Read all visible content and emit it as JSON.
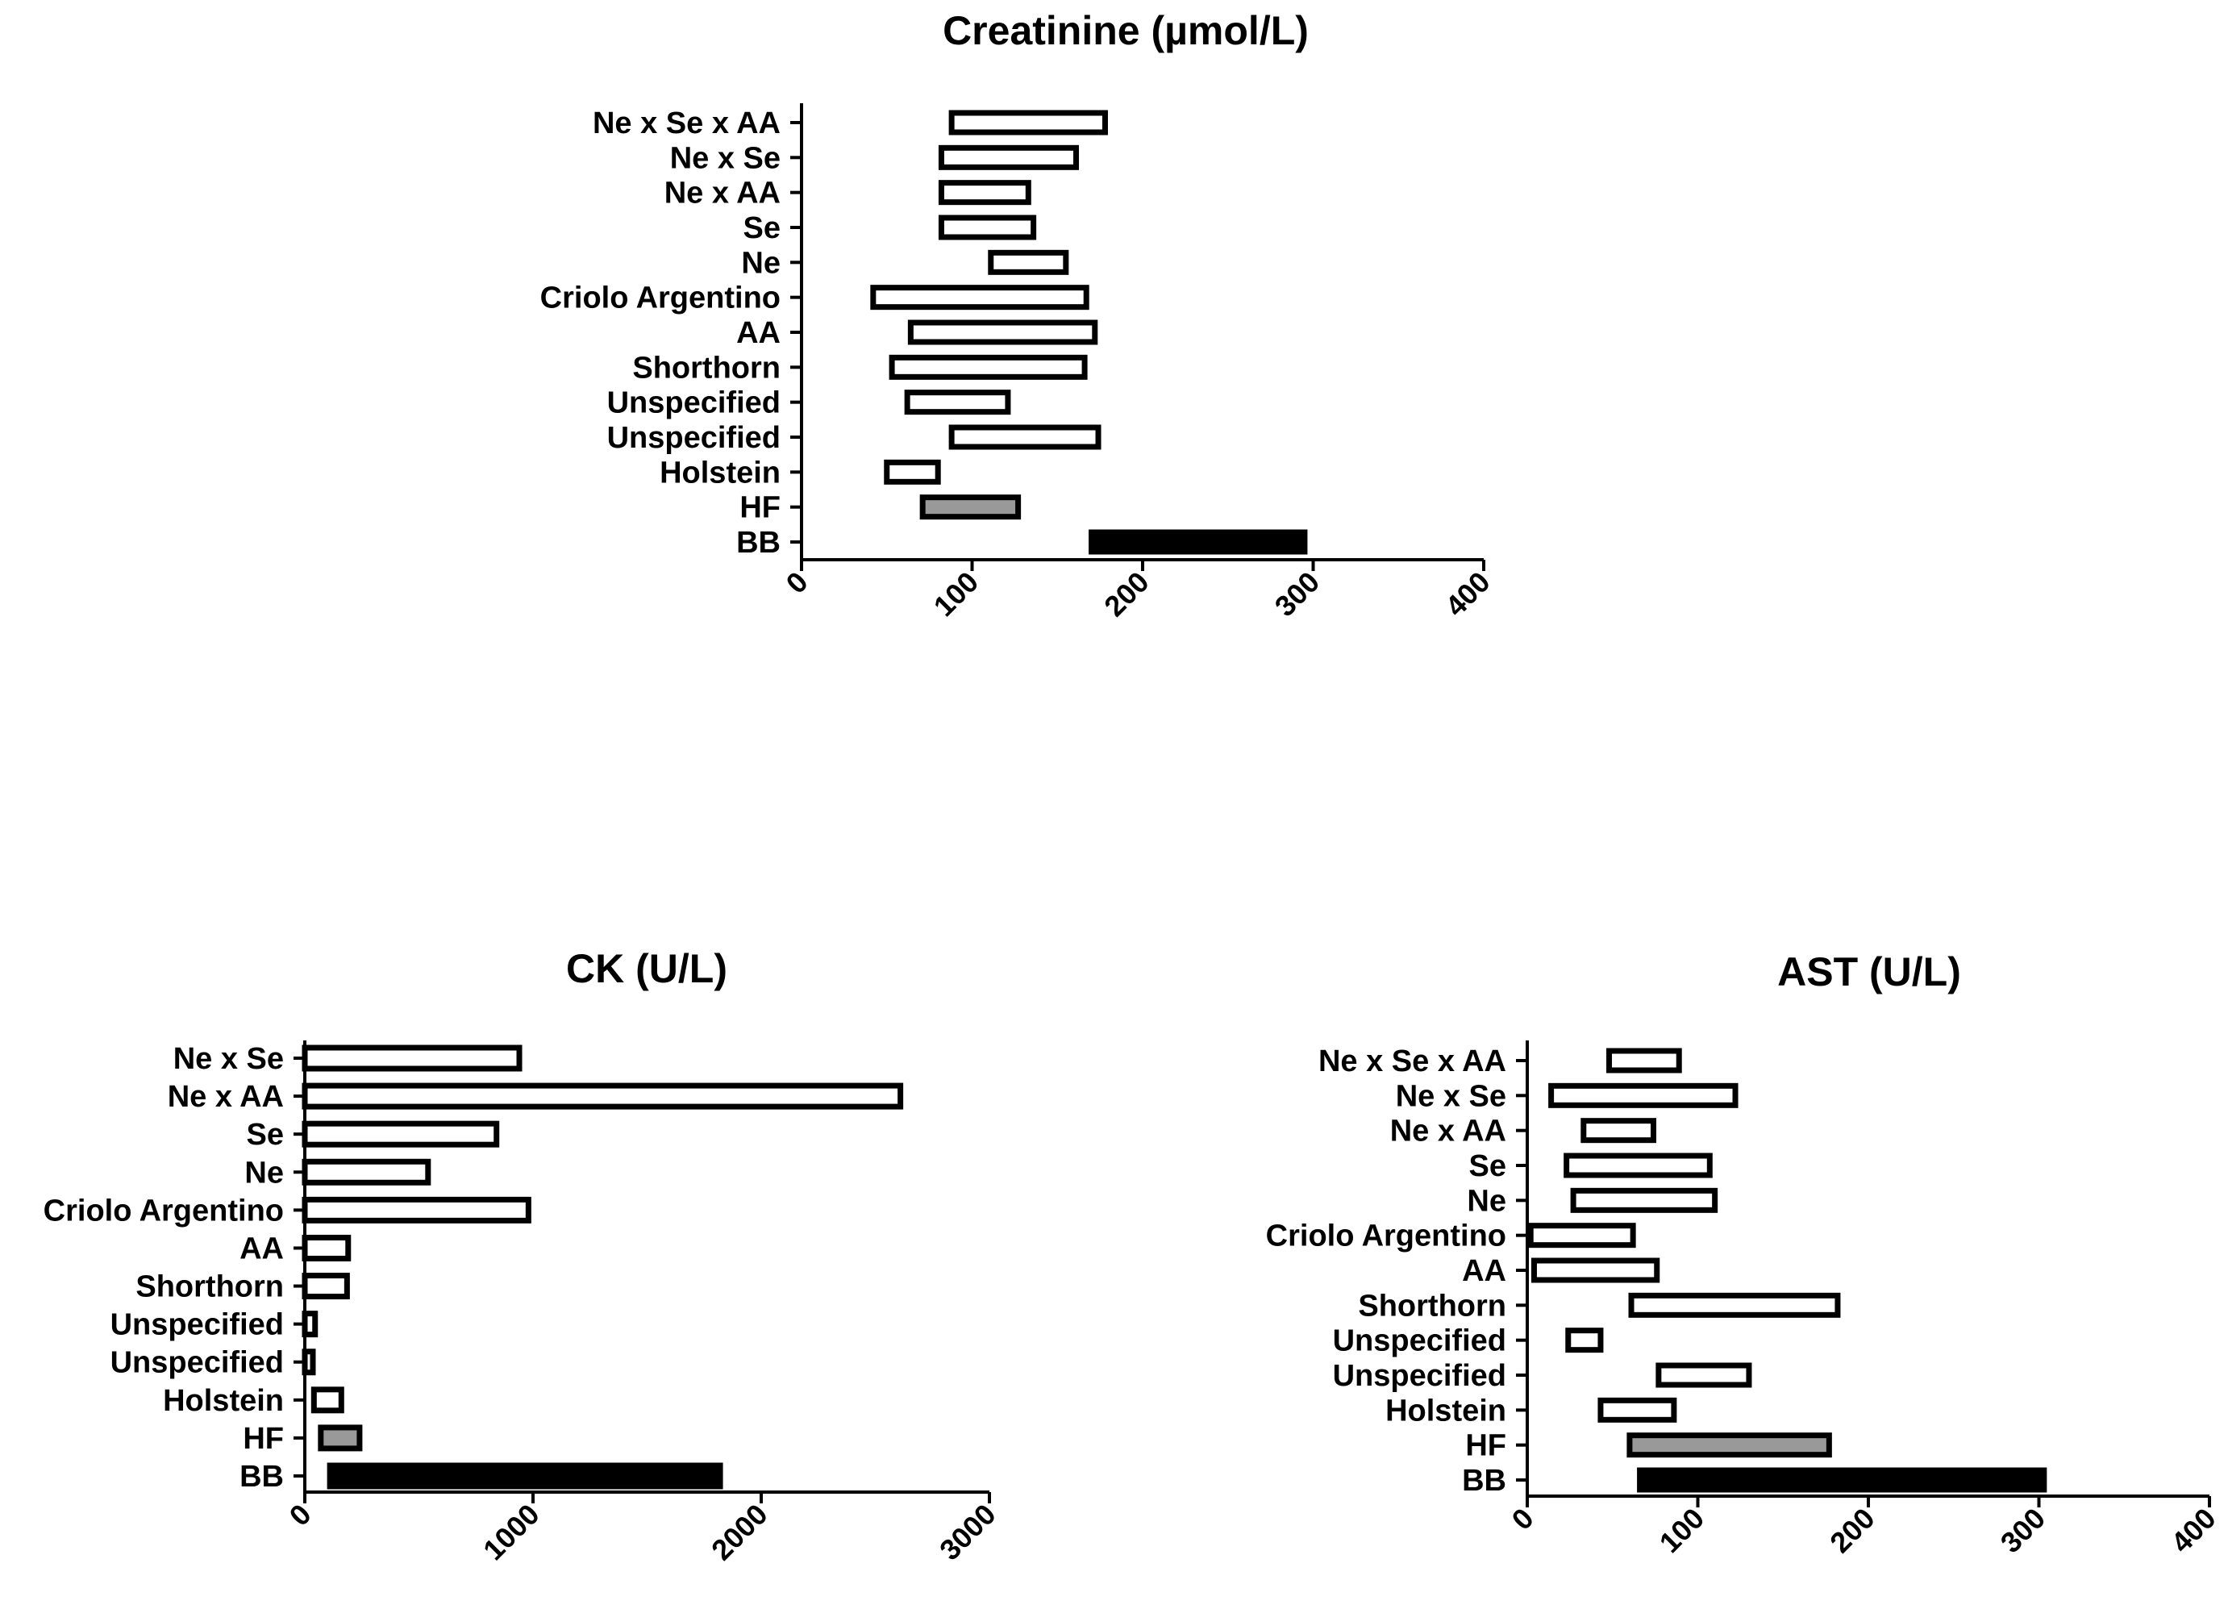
{
  "chart_data": [
    {
      "id": "creatinine",
      "type": "floating-bar",
      "title": "Creatinine (µmol/L)",
      "xlabel": "",
      "ylabel": "",
      "xlim": [
        0,
        400
      ],
      "xticks": [
        0,
        100,
        200,
        300,
        400
      ],
      "bars": [
        {
          "label": "Ne x Se x AA",
          "min": 88,
          "max": 178,
          "fill": "white"
        },
        {
          "label": "Ne x Se",
          "min": 82,
          "max": 161,
          "fill": "white"
        },
        {
          "label": "Ne x AA",
          "min": 82,
          "max": 133,
          "fill": "white"
        },
        {
          "label": "Se",
          "min": 82,
          "max": 136,
          "fill": "white"
        },
        {
          "label": "Ne",
          "min": 111,
          "max": 155,
          "fill": "white"
        },
        {
          "label": "Criolo Argentino",
          "min": 42,
          "max": 167,
          "fill": "white"
        },
        {
          "label": "AA",
          "min": 64,
          "max": 172,
          "fill": "white"
        },
        {
          "label": "Shorthorn",
          "min": 53,
          "max": 166,
          "fill": "white"
        },
        {
          "label": "Unspecified",
          "min": 62,
          "max": 121,
          "fill": "white"
        },
        {
          "label": "Unspecified",
          "min": 88,
          "max": 174,
          "fill": "white"
        },
        {
          "label": "Holstein",
          "min": 50,
          "max": 80,
          "fill": "white"
        },
        {
          "label": "HF",
          "min": 71,
          "max": 127,
          "fill": "gray"
        },
        {
          "label": "BB",
          "min": 170,
          "max": 295,
          "fill": "black"
        }
      ]
    },
    {
      "id": "ck",
      "type": "floating-bar",
      "title": "CK (U/L)",
      "xlabel": "",
      "ylabel": "",
      "xlim": [
        0,
        3000
      ],
      "xticks": [
        0,
        1000,
        2000,
        3000
      ],
      "bars": [
        {
          "label": "Ne x Se",
          "min": 0,
          "max": 940,
          "fill": "white"
        },
        {
          "label": "Ne x AA",
          "min": 0,
          "max": 2610,
          "fill": "white"
        },
        {
          "label": "Se",
          "min": 0,
          "max": 840,
          "fill": "white"
        },
        {
          "label": "Ne",
          "min": 0,
          "max": 540,
          "fill": "white"
        },
        {
          "label": "Criolo Argentino",
          "min": 0,
          "max": 980,
          "fill": "white"
        },
        {
          "label": "AA",
          "min": 0,
          "max": 190,
          "fill": "white"
        },
        {
          "label": "Shorthorn",
          "min": 0,
          "max": 185,
          "fill": "white"
        },
        {
          "label": "Unspecified",
          "min": 0,
          "max": 45,
          "fill": "white"
        },
        {
          "label": "Unspecified",
          "min": 0,
          "max": 20,
          "fill": "white"
        },
        {
          "label": "Holstein",
          "min": 40,
          "max": 160,
          "fill": "white"
        },
        {
          "label": "HF",
          "min": 70,
          "max": 240,
          "fill": "gray"
        },
        {
          "label": "BB",
          "min": 110,
          "max": 1820,
          "fill": "black"
        }
      ]
    },
    {
      "id": "ast",
      "type": "floating-bar",
      "title": "AST (U/L)",
      "xlabel": "",
      "ylabel": "",
      "xlim": [
        0,
        400
      ],
      "xticks": [
        0,
        100,
        200,
        300,
        400
      ],
      "bars": [
        {
          "label": "Ne x Se x AA",
          "min": 48,
          "max": 89,
          "fill": "white"
        },
        {
          "label": "Ne x Se",
          "min": 14,
          "max": 122,
          "fill": "white"
        },
        {
          "label": "Ne x AA",
          "min": 33,
          "max": 74,
          "fill": "white"
        },
        {
          "label": "Se",
          "min": 23,
          "max": 107,
          "fill": "white"
        },
        {
          "label": "Ne",
          "min": 27,
          "max": 110,
          "fill": "white"
        },
        {
          "label": "Criolo Argentino",
          "min": 2,
          "max": 62,
          "fill": "white"
        },
        {
          "label": "AA",
          "min": 4,
          "max": 76,
          "fill": "white"
        },
        {
          "label": "Shorthorn",
          "min": 61,
          "max": 182,
          "fill": "white"
        },
        {
          "label": "Unspecified",
          "min": 24,
          "max": 43,
          "fill": "white"
        },
        {
          "label": "Unspecified",
          "min": 77,
          "max": 130,
          "fill": "white"
        },
        {
          "label": "Holstein",
          "min": 43,
          "max": 86,
          "fill": "white"
        },
        {
          "label": "HF",
          "min": 60,
          "max": 177,
          "fill": "gray"
        },
        {
          "label": "BB",
          "min": 66,
          "max": 303,
          "fill": "black"
        }
      ]
    }
  ]
}
